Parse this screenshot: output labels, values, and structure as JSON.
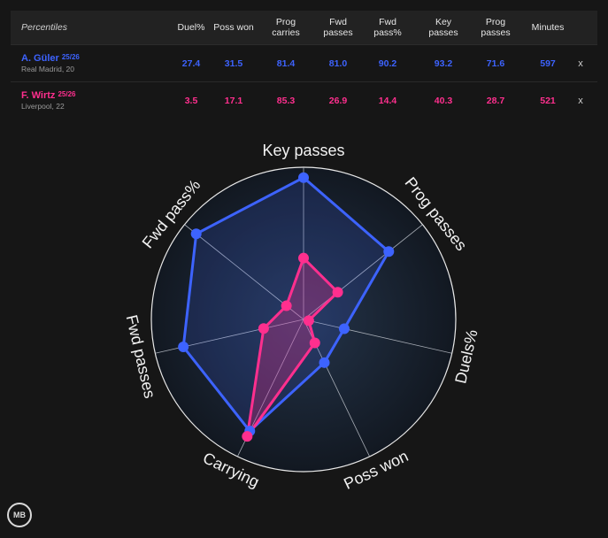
{
  "table": {
    "header_label": "Percentiles",
    "columns": [
      "Duel%",
      "Poss won",
      "Prog carries",
      "Fwd passes",
      "Fwd pass%",
      "Key passes",
      "Prog passes",
      "Minutes"
    ],
    "close_label": "x",
    "players": [
      {
        "name": "A. Güler",
        "season": "25/26",
        "club": "Real Madrid, 20",
        "color": "#3d63ff",
        "values": [
          "27.4",
          "31.5",
          "81.4",
          "81.0",
          "90.2",
          "93.2",
          "71.6",
          "597"
        ]
      },
      {
        "name": "F. Wirtz",
        "season": "25/26",
        "club": "Liverpool, 22",
        "color": "#ff2f8e",
        "values": [
          "3.5",
          "17.1",
          "85.3",
          "26.9",
          "14.4",
          "40.3",
          "28.7",
          "521"
        ]
      }
    ]
  },
  "logo_text": "MB",
  "chart_data": {
    "type": "radar",
    "axes": [
      "Key passes",
      "Prog passes",
      "Duels%",
      "Poss won",
      "Carrying",
      "Fwd passes",
      "Fwd pass%"
    ],
    "range": [
      0,
      100
    ],
    "series": [
      {
        "name": "A. Güler",
        "color": "#3d63ff",
        "values": [
          93.2,
          71.6,
          27.4,
          31.5,
          81.4,
          81.0,
          90.2
        ]
      },
      {
        "name": "F. Wirtz",
        "color": "#ff2f8e",
        "values": [
          40.3,
          28.7,
          3.5,
          17.1,
          85.3,
          26.9,
          14.4
        ]
      }
    ]
  }
}
